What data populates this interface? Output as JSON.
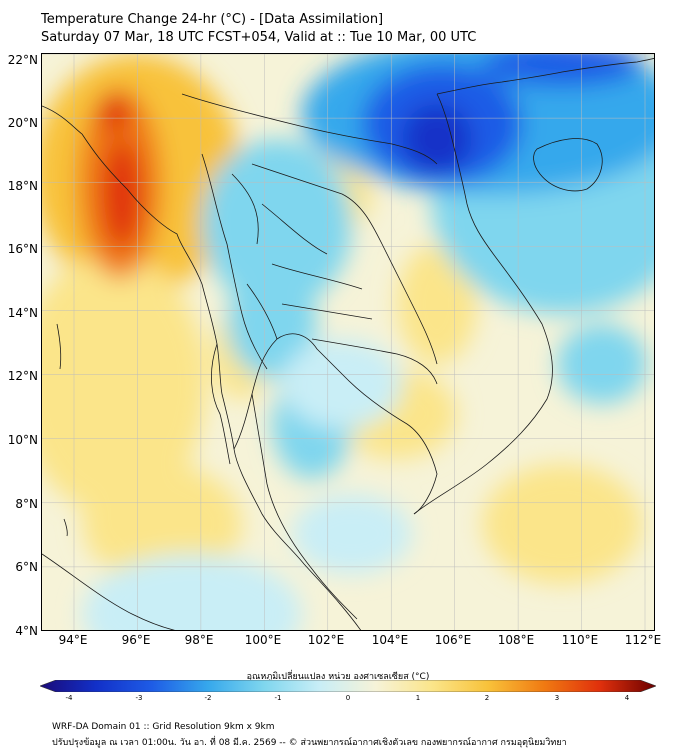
{
  "header": {
    "title_line_1": "Temperature Change 24-hr (°C) - [Data Assimilation]",
    "title_line_2": "Saturday 07 Mar, 18 UTC FCST+054, Valid at :: Tue 10 Mar, 00 UTC"
  },
  "map": {
    "lat_labels": [
      "22°N",
      "20°N",
      "18°N",
      "16°N",
      "14°N",
      "12°N",
      "10°N",
      "8°N",
      "6°N",
      "4°N"
    ],
    "lon_labels": [
      "94°E",
      "96°E",
      "98°E",
      "100°E",
      "102°E",
      "104°E",
      "106°E",
      "108°E",
      "110°E",
      "112°E"
    ],
    "colors": {
      "neutral": "#f6f3d8",
      "warm_light": "#fbe58a",
      "warm": "#f8c23a",
      "hot": "#f07a12",
      "very_hot": "#e0300c",
      "cool_light": "#c9eef6",
      "cool": "#7fd6ee",
      "cold": "#36a8ec",
      "very_cold": "#1e5ce6",
      "deep_cold": "#1230c8",
      "coastline": "#1a1a1a",
      "grid": "#bdbdbd"
    }
  },
  "colorbar": {
    "label": "อุณหภูมิเปลี่ยนแปลง หน่วย องศาเซลเซียส (°C)",
    "ticks": [
      "-4",
      "-3",
      "-2",
      "-1",
      "0",
      "1",
      "2",
      "3",
      "4"
    ],
    "colors": [
      "#1a0a78",
      "#1230c8",
      "#1e5ce6",
      "#36a8ec",
      "#7fd6ee",
      "#c9eef6",
      "#f6f3d8",
      "#fbe58a",
      "#f8c23a",
      "#f07a12",
      "#e0300c",
      "#6b0000"
    ]
  },
  "footer": {
    "line_1": "WRF-DA Domain 01 :: Grid Resolution 9km x 9km",
    "line_2": "ปรับปรุงข้อมูล ณ เวลา 01:00น. วัน อา. ที่ 08 มี.ค. 2569 -- © ส่วนพยากรณ์อากาศเชิงตัวเลข กองพยากรณ์อากาศ กรมอุตุนิยมวิทยา"
  }
}
